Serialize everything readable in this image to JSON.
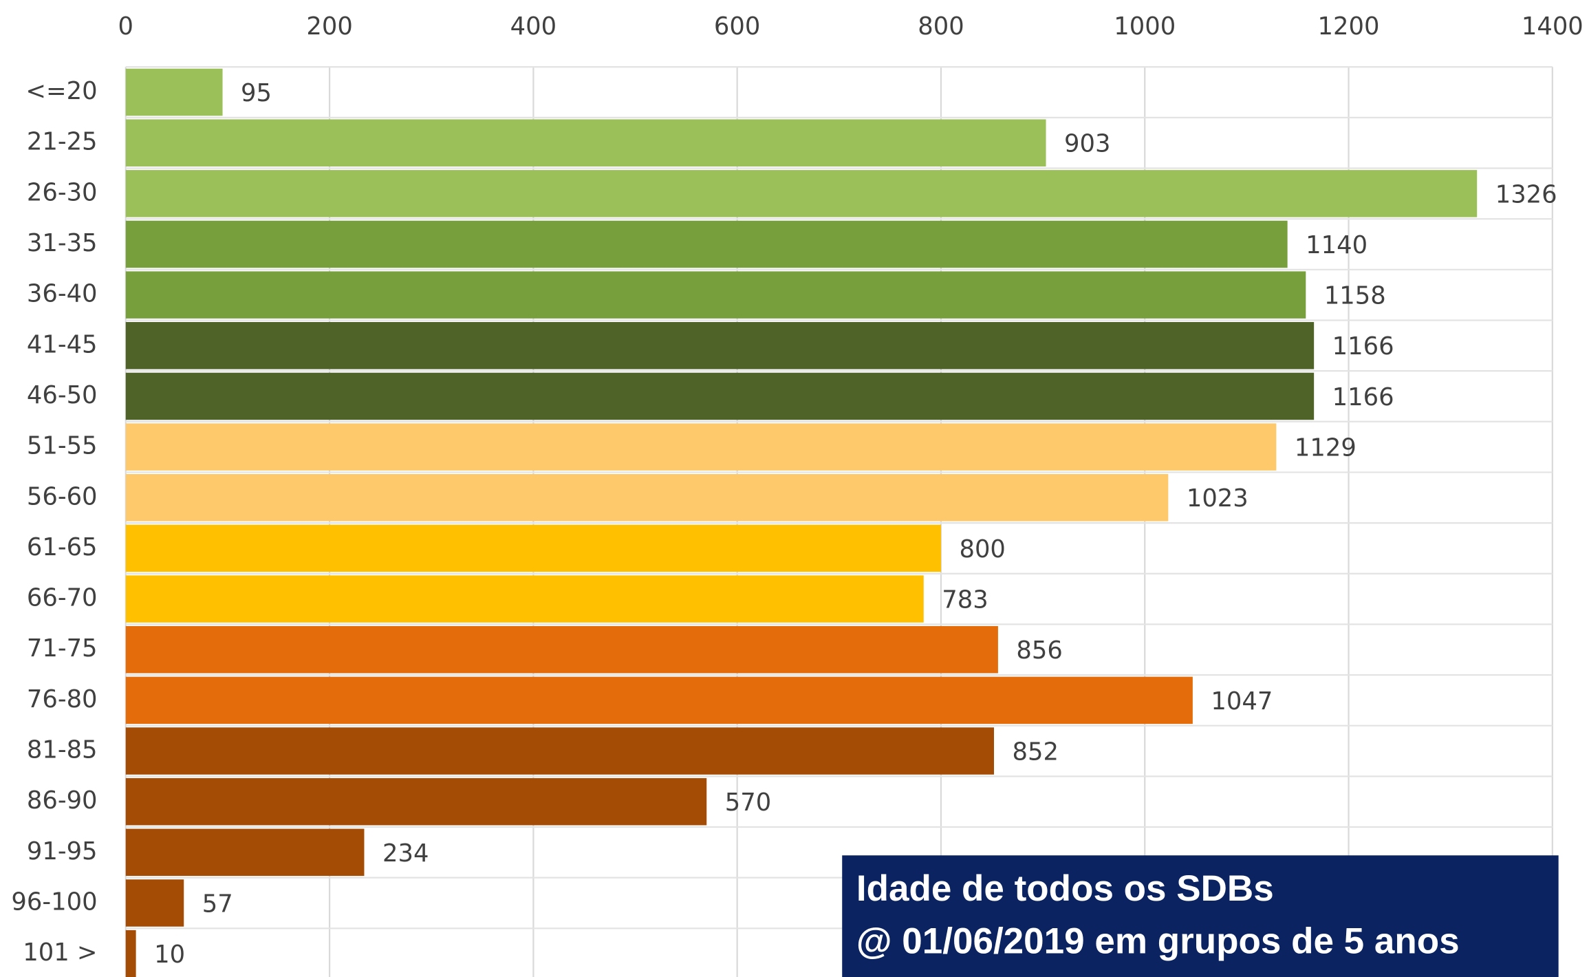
{
  "chart_data": {
    "type": "bar",
    "orientation": "horizontal",
    "title": "Idade de todos os SDBs",
    "subtitle": "@ 01/06/2019 em grupos de 5 anos",
    "categories": [
      "<=20",
      "21-25",
      "26-30",
      "31-35",
      "36-40",
      "41-45",
      "46-50",
      "51-55",
      "56-60",
      "61-65",
      "66-70",
      "71-75",
      "76-80",
      "81-85",
      "86-90",
      "91-95",
      "96-100",
      "101 >"
    ],
    "values": [
      95,
      903,
      1326,
      1140,
      1158,
      1166,
      1166,
      1129,
      1023,
      800,
      783,
      856,
      1047,
      852,
      570,
      234,
      57,
      10
    ],
    "colors": [
      "#9bc05a",
      "#9bc05a",
      "#9bc05a",
      "#77a03c",
      "#77a03c",
      "#4f6228",
      "#4f6228",
      "#fdc96a",
      "#fdc96a",
      "#ffc000",
      "#ffc000",
      "#e46c0a",
      "#e46c0a",
      "#a44c05",
      "#a44c05",
      "#a44c05",
      "#a44c05",
      "#a44c05"
    ],
    "xlim": [
      0,
      1400
    ],
    "xticks": [
      0,
      200,
      400,
      600,
      800,
      1000,
      1200,
      1400
    ],
    "grid": true
  }
}
